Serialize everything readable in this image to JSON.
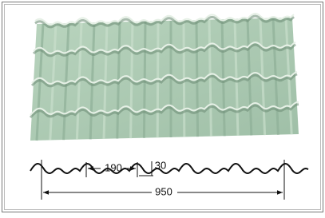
{
  "dimensions": {
    "pitch": 190,
    "height": 30,
    "width": 950
  }
}
